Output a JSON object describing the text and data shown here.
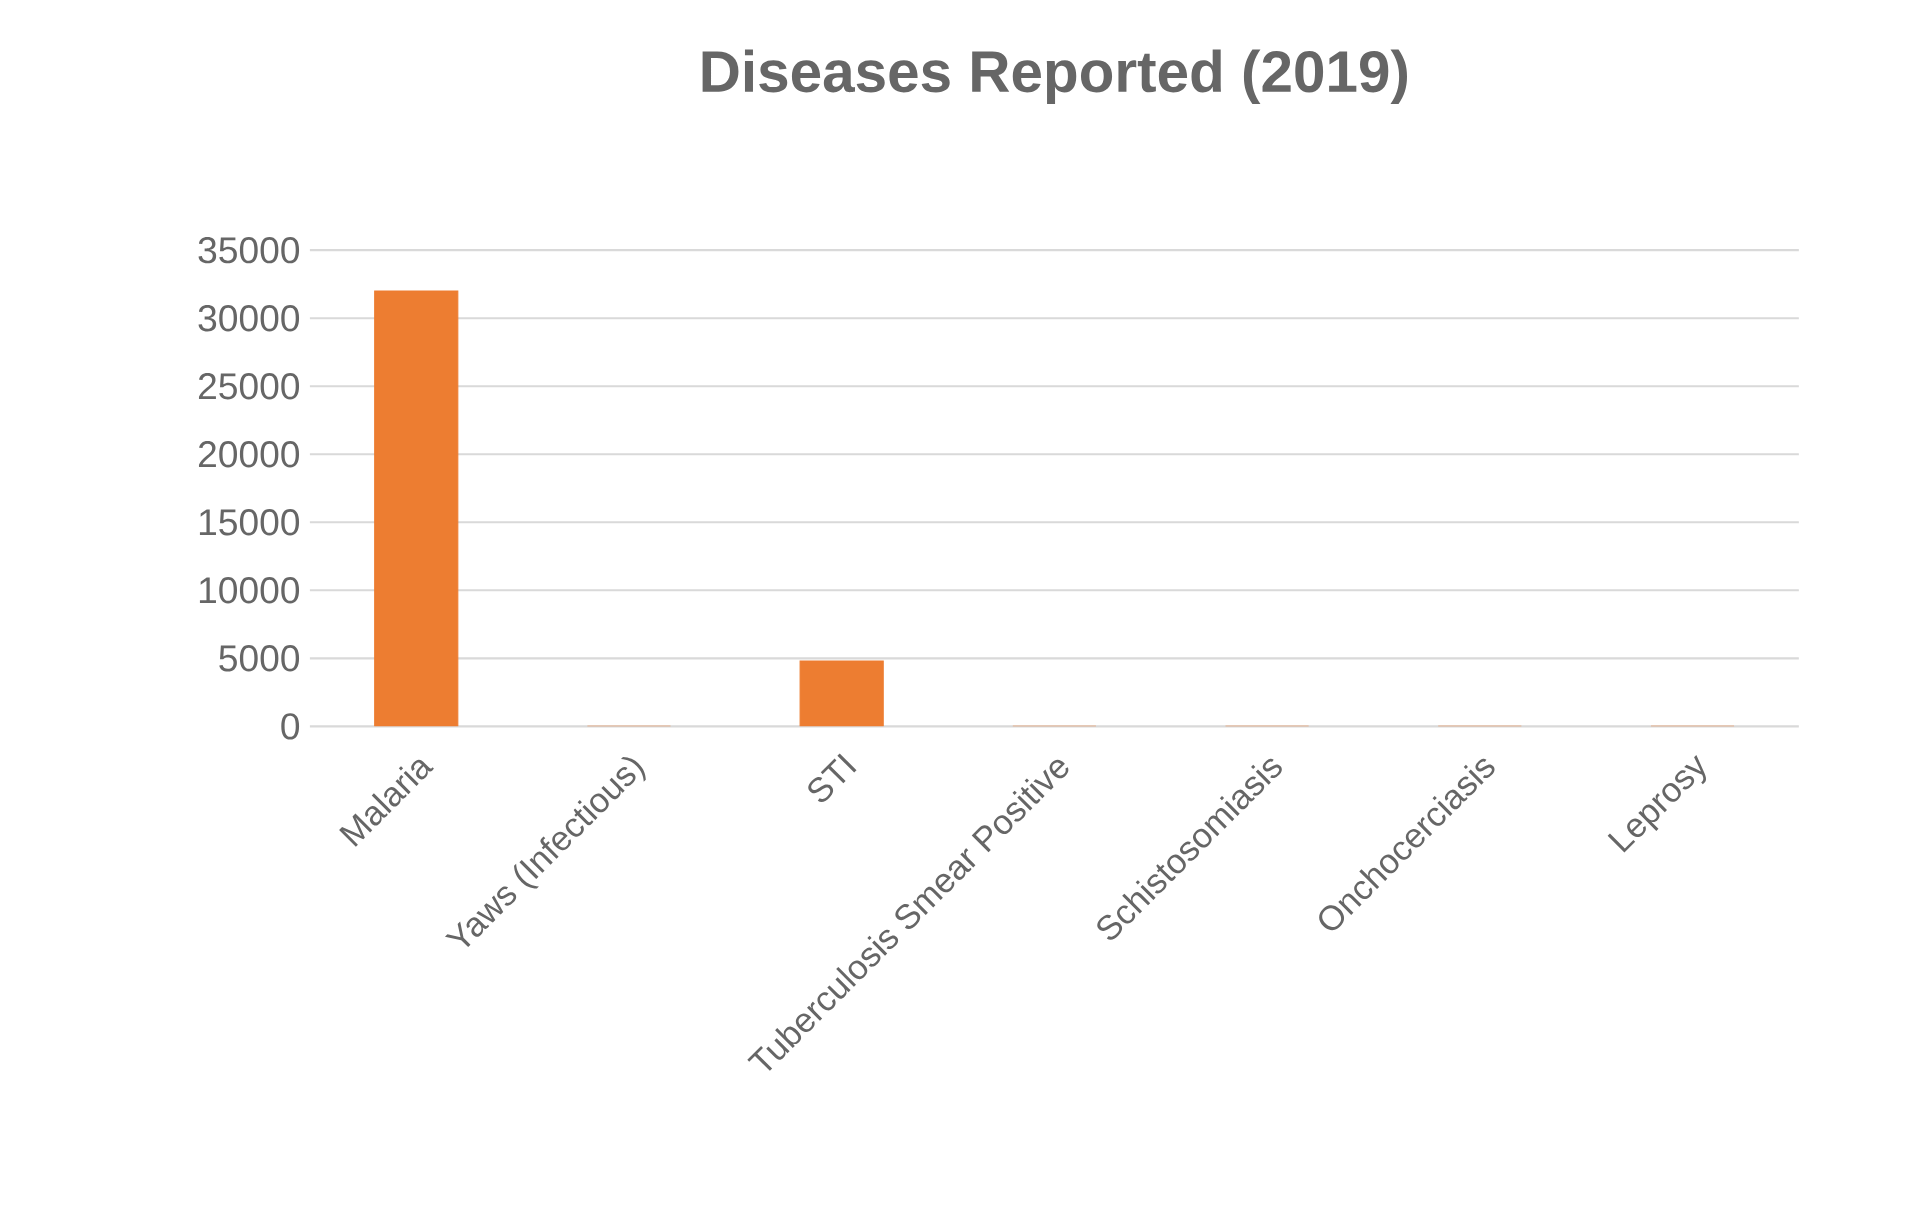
{
  "chart_data": {
    "type": "bar",
    "title": "Diseases Reported (2019)",
    "categories": [
      "Malaria",
      "Yaws (Infectious)",
      "STI",
      "Tuberculosis Smear Positive",
      "Schistosomiasis",
      "Onchocerciasis",
      "Leprosy"
    ],
    "values": [
      32000,
      0,
      4800,
      0,
      0,
      0,
      0
    ],
    "color": "#ed7d31",
    "ylim": [
      0,
      35000
    ],
    "yticks": [
      0,
      5000,
      10000,
      15000,
      20000,
      25000,
      30000,
      35000
    ],
    "grid": "y"
  }
}
